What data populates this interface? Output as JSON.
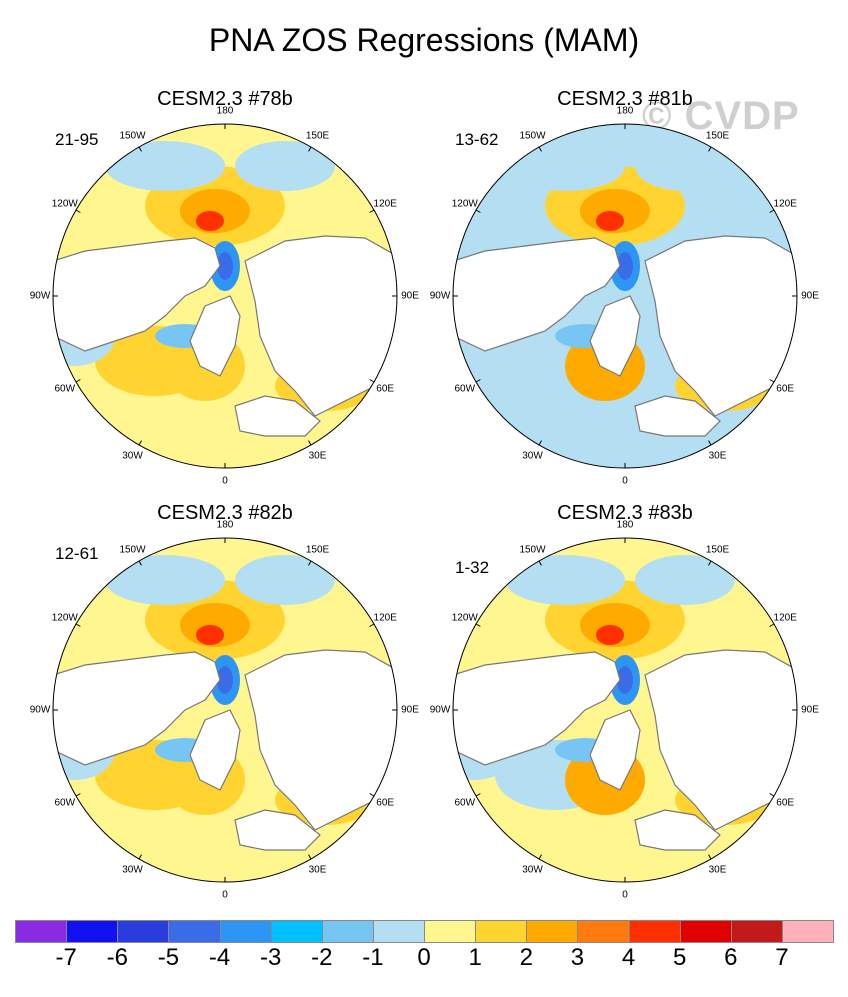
{
  "title": "PNA ZOS Regressions (MAM)",
  "watermark": "© CVDP",
  "chart_data": {
    "type": "heatmap",
    "projection": "north polar stereographic",
    "variable": "ZOS",
    "season": "MAM",
    "panels": [
      {
        "title": "CESM2.3 #78b",
        "period": "21-95"
      },
      {
        "title": "CESM2.3 #81b",
        "period": "13-62"
      },
      {
        "title": "CESM2.3 #82b",
        "period": "12-61"
      },
      {
        "title": "CESM2.3 #83b",
        "period": "1-32"
      }
    ],
    "longitude_labels": [
      "180",
      "150E",
      "120E",
      "90E",
      "60E",
      "30E",
      "0",
      "30W",
      "60W",
      "90W",
      "120W",
      "150W"
    ],
    "colorbar": {
      "levels": [
        "-7",
        "-6",
        "-5",
        "-4",
        "-3",
        "-2",
        "-1",
        "0",
        "1",
        "2",
        "3",
        "4",
        "5",
        "6",
        "7"
      ],
      "colors": [
        "#8a2be2",
        "#1010f0",
        "#2a3cdc",
        "#3b6ce8",
        "#2d96f5",
        "#00c0ff",
        "#76c5f3",
        "#b4def2",
        "#fff68f",
        "#ffd431",
        "#ffaa00",
        "#ff7a10",
        "#ff3000",
        "#e00000",
        "#c21a1a",
        "#ffb0b8"
      ]
    }
  }
}
